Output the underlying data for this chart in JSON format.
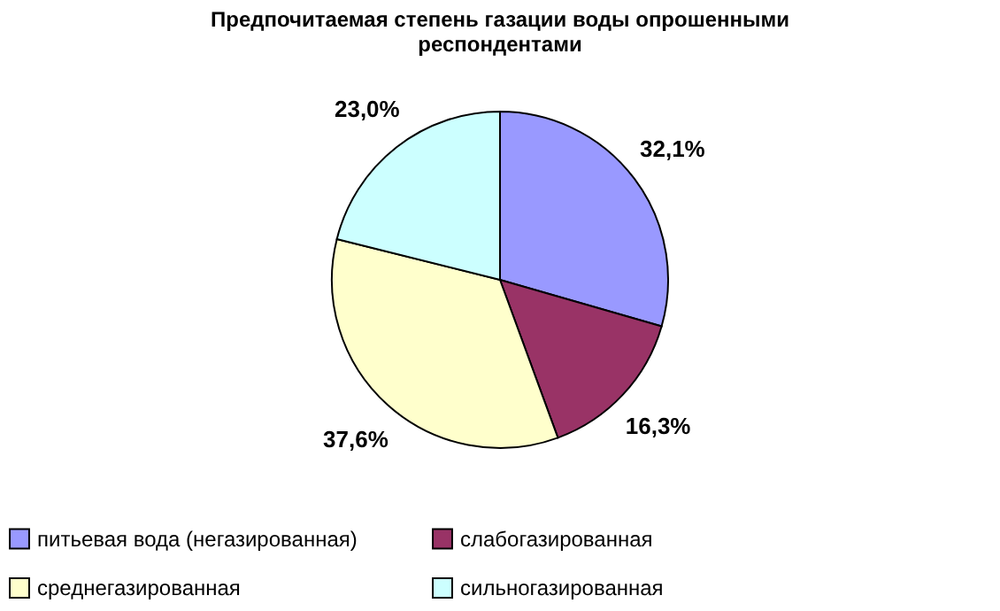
{
  "chart_data": {
    "type": "pie",
    "title": [
      "Предпочитаемая степень газации воды опрошенными",
      "респондентами"
    ],
    "categories": [
      "питьевая вода (негазированная)",
      "слабогазированная",
      "среднегазированная",
      "сильногазированная"
    ],
    "values": [
      32.1,
      16.3,
      37.6,
      23.0
    ],
    "colors": [
      "#9999ff",
      "#993366",
      "#ffffcc",
      "#ccffff"
    ],
    "value_labels": [
      "32,1%",
      "16,3%",
      "37,6%",
      "23,0%"
    ],
    "legend": "bottom"
  }
}
